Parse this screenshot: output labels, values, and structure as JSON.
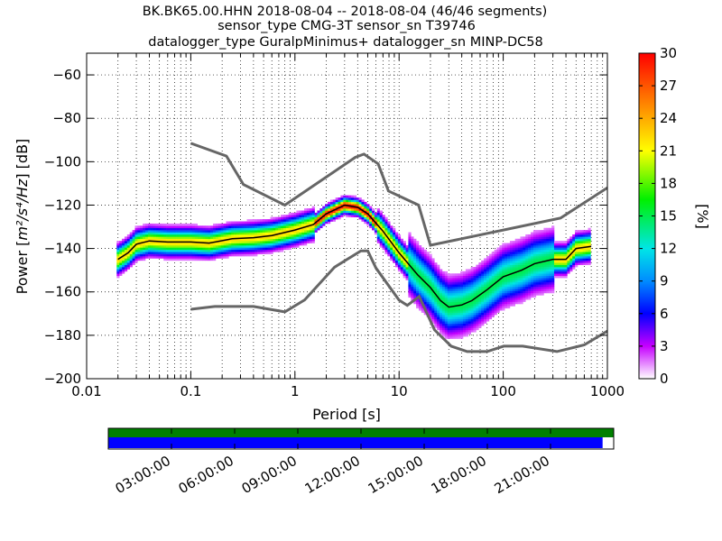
{
  "chart_data": {
    "type": "heatmap",
    "title_lines": [
      "BK.BK65.00.HHN   2018-08-04 -- 2018-08-04  (46/46 segments)",
      "sensor_type CMG-3T sensor_sn T39746",
      "datalogger_type GuralpMinimus+ datalogger_sn MINP-DC58"
    ],
    "xlabel": "Period [s]",
    "ylabel_prefix": "Power [",
    "ylabel_unit": "m²/s⁴/Hz",
    "ylabel_suffix": "] [dB]",
    "x_scale": "log",
    "xlim": [
      0.01,
      1000
    ],
    "ylim": [
      -200,
      -50
    ],
    "x_ticks": [
      0.01,
      0.1,
      1,
      10,
      100,
      1000
    ],
    "x_tick_labels": [
      "0.01",
      "0.1",
      "1",
      "10",
      "100",
      "1000"
    ],
    "y_ticks": [
      -200,
      -180,
      -160,
      -140,
      -120,
      -100,
      -80,
      -60
    ],
    "y_tick_labels": [
      "−200",
      "−180",
      "−160",
      "−140",
      "−120",
      "−100",
      "−80",
      "−60"
    ],
    "grid": true,
    "colorbar": {
      "label": "[%]",
      "range": [
        0,
        30
      ],
      "ticks": [
        0,
        3,
        6,
        9,
        12,
        15,
        18,
        21,
        24,
        27,
        30
      ],
      "tick_labels": [
        "0",
        "3",
        "6",
        "9",
        "12",
        "15",
        "18",
        "21",
        "24",
        "27",
        "30"
      ],
      "colormap": "pqlx"
    },
    "noise_models": [
      {
        "name": "NHNM",
        "color": "#666666",
        "points": [
          [
            0.1,
            -91.5
          ],
          [
            0.22,
            -97.4
          ],
          [
            0.32,
            -110.5
          ],
          [
            0.8,
            -120
          ],
          [
            3.8,
            -98
          ],
          [
            4.6,
            -96.5
          ],
          [
            6.3,
            -101
          ],
          [
            7.9,
            -113.5
          ],
          [
            15.4,
            -120
          ],
          [
            20,
            -138.5
          ],
          [
            354.8,
            -126
          ],
          [
            1000,
            -112
          ]
        ]
      },
      {
        "name": "NLNM",
        "color": "#666666",
        "points": [
          [
            0.1,
            -168
          ],
          [
            0.17,
            -166.7
          ],
          [
            0.4,
            -166.7
          ],
          [
            0.8,
            -169.2
          ],
          [
            1.24,
            -163.7
          ],
          [
            2.4,
            -148.6
          ],
          [
            4.3,
            -141.1
          ],
          [
            5,
            -141.1
          ],
          [
            6,
            -149
          ],
          [
            10,
            -163.8
          ],
          [
            12,
            -166.2
          ],
          [
            15.6,
            -162.1
          ],
          [
            21.9,
            -177.5
          ],
          [
            31.6,
            -185
          ],
          [
            45,
            -187.5
          ],
          [
            70,
            -187.5
          ],
          [
            101,
            -185
          ],
          [
            154,
            -185
          ],
          [
            328,
            -187.5
          ],
          [
            600,
            -184.4
          ],
          [
            1000,
            -178
          ]
        ]
      }
    ],
    "ppsd_mode_curve": [
      [
        0.02,
        -145
      ],
      [
        0.025,
        -142
      ],
      [
        0.03,
        -138
      ],
      [
        0.04,
        -136.5
      ],
      [
        0.06,
        -137
      ],
      [
        0.1,
        -137
      ],
      [
        0.15,
        -137.5
      ],
      [
        0.25,
        -135.5
      ],
      [
        0.4,
        -135
      ],
      [
        0.6,
        -134
      ],
      [
        1,
        -131.5
      ],
      [
        1.5,
        -129
      ],
      [
        2,
        -124
      ],
      [
        3,
        -120
      ],
      [
        4,
        -121
      ],
      [
        5,
        -124
      ],
      [
        7,
        -132
      ],
      [
        10,
        -142
      ],
      [
        15,
        -152
      ],
      [
        20,
        -158
      ],
      [
        25,
        -164
      ],
      [
        30,
        -167
      ],
      [
        40,
        -166
      ],
      [
        50,
        -164
      ],
      [
        70,
        -159
      ],
      [
        100,
        -153
      ],
      [
        150,
        -150
      ],
      [
        200,
        -147
      ],
      [
        300,
        -145
      ],
      [
        400,
        -145
      ],
      [
        500,
        -140
      ],
      [
        700,
        -139
      ]
    ],
    "timeline": {
      "tick_labels": [
        "03:00:00",
        "06:00:00",
        "09:00:00",
        "12:00:00",
        "15:00:00",
        "18:00:00",
        "21:00:00"
      ],
      "hours": [
        3,
        6,
        9,
        12,
        15,
        18,
        21
      ],
      "available_fraction": 1.0,
      "processed_fraction": 0.978,
      "colors": {
        "available": "#008000",
        "processed": "#0000ff"
      }
    }
  }
}
